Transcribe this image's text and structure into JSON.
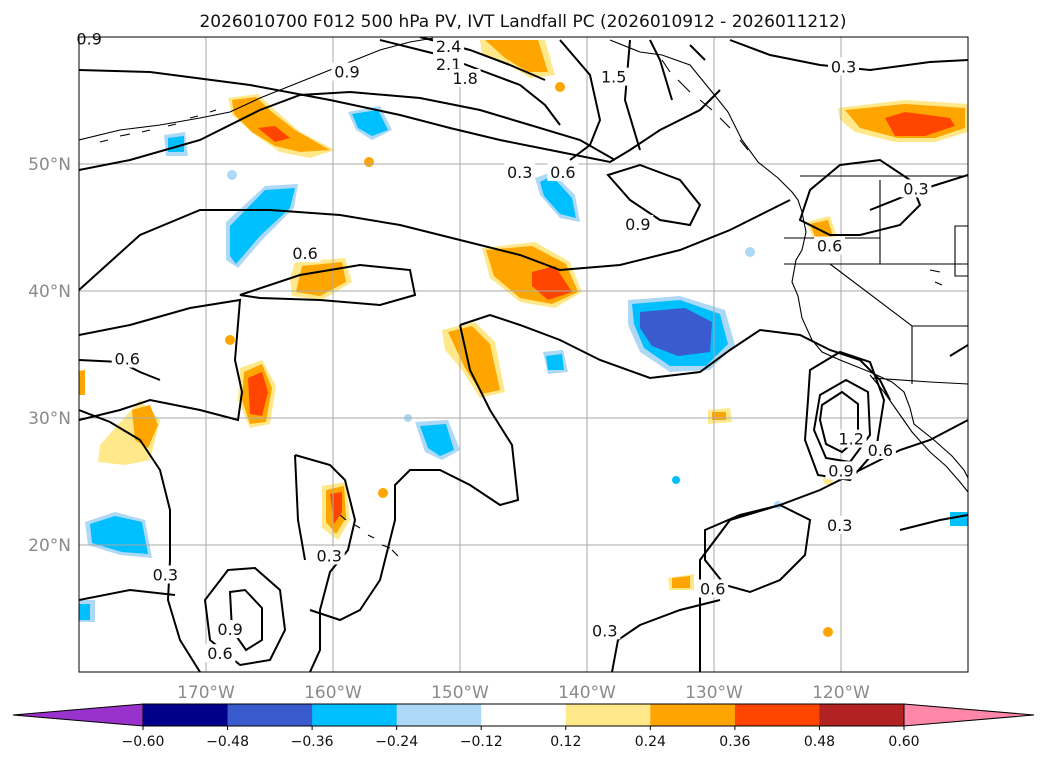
{
  "chart_data": {
    "type": "map-contour",
    "title": "2026010700 F012 500 hPa PV, IVT Landfall PC (2026010912 - 2026011212)",
    "lon_range": [
      -180,
      -110
    ],
    "lat_range": [
      10,
      60
    ],
    "lon_ticks": [
      {
        "value": -170,
        "label": "170°W"
      },
      {
        "value": -160,
        "label": "160°W"
      },
      {
        "value": -150,
        "label": "150°W"
      },
      {
        "value": -140,
        "label": "140°W"
      },
      {
        "value": -130,
        "label": "130°W"
      },
      {
        "value": -120,
        "label": "120°W"
      }
    ],
    "lat_ticks": [
      {
        "value": 20,
        "label": "20°N"
      },
      {
        "value": 30,
        "label": "30°N"
      },
      {
        "value": 40,
        "label": "40°N"
      },
      {
        "value": 50,
        "label": "50°N"
      }
    ],
    "grid": true,
    "colorbar": {
      "orientation": "horizontal",
      "extend": "both",
      "boundaries": [
        -0.6,
        -0.48,
        -0.36,
        -0.24,
        -0.12,
        0.12,
        0.24,
        0.36,
        0.48,
        0.6
      ],
      "tick_labels": [
        "−0.60",
        "−0.48",
        "−0.36",
        "−0.24",
        "−0.12",
        "0.12",
        "0.24",
        "0.36",
        "0.48",
        "0.60"
      ],
      "colors": [
        "#9932cc",
        "#00008b",
        "#3a5bcd",
        "#00bfff",
        "#add8f6",
        "#ffffff",
        "#ffe88a",
        "#ffa500",
        "#ff4500",
        "#b22222",
        "#ff88a8"
      ]
    },
    "contour_labels": [
      {
        "lon": -179.2,
        "lat": 59.8,
        "text": "0.9"
      },
      {
        "lon": -150.9,
        "lat": 59.2,
        "text": "2.4"
      },
      {
        "lon": -150.9,
        "lat": 57.8,
        "text": "2.1"
      },
      {
        "lon": -149.6,
        "lat": 56.7,
        "text": "1.8"
      },
      {
        "lon": -158.9,
        "lat": 57.2,
        "text": "0.9"
      },
      {
        "lon": -137.9,
        "lat": 56.8,
        "text": "1.5"
      },
      {
        "lon": -119.8,
        "lat": 57.6,
        "text": "0.3"
      },
      {
        "lon": -145.3,
        "lat": 49.3,
        "text": "0.3"
      },
      {
        "lon": -141.9,
        "lat": 49.3,
        "text": "0.6"
      },
      {
        "lon": -136.0,
        "lat": 45.2,
        "text": "0.9"
      },
      {
        "lon": -120.9,
        "lat": 43.5,
        "text": "0.6"
      },
      {
        "lon": -114.1,
        "lat": 48.0,
        "text": "0.3"
      },
      {
        "lon": -162.2,
        "lat": 42.9,
        "text": "0.6"
      },
      {
        "lon": -176.2,
        "lat": 34.6,
        "text": "0.6"
      },
      {
        "lon": -119.2,
        "lat": 28.3,
        "text": "1.2"
      },
      {
        "lon": -116.9,
        "lat": 27.4,
        "text": "0.6"
      },
      {
        "lon": -120.0,
        "lat": 25.8,
        "text": "0.9"
      },
      {
        "lon": -120.1,
        "lat": 21.5,
        "text": "0.3"
      },
      {
        "lon": -173.2,
        "lat": 17.6,
        "text": "0.3"
      },
      {
        "lon": -160.3,
        "lat": 19.1,
        "text": "0.3"
      },
      {
        "lon": -130.1,
        "lat": 16.5,
        "text": "0.6"
      },
      {
        "lon": -168.1,
        "lat": 13.3,
        "text": "0.9"
      },
      {
        "lon": -138.6,
        "lat": 13.2,
        "text": "0.3"
      },
      {
        "lon": -168.9,
        "lat": 11.4,
        "text": "0.6"
      }
    ],
    "shaded_anomalies": [
      {
        "lon": -164.2,
        "lat": 55.5,
        "value": 0.38
      },
      {
        "lon": -141.9,
        "lat": 59.0,
        "value": 0.3
      },
      {
        "lon": -119.0,
        "lat": 52.9,
        "value": 0.4
      },
      {
        "lon": -160.5,
        "lat": 41.5,
        "value": 0.3
      },
      {
        "lon": -143.1,
        "lat": 41.0,
        "value": 0.4
      },
      {
        "lon": -148.9,
        "lat": 34.8,
        "value": 0.3
      },
      {
        "lon": -165.8,
        "lat": 32.0,
        "value": 0.4
      },
      {
        "lon": -175.2,
        "lat": 29.0,
        "value": 0.3
      },
      {
        "lon": -158.2,
        "lat": 23.0,
        "value": 0.42
      },
      {
        "lon": -121.7,
        "lat": 44.5,
        "value": 0.3
      },
      {
        "lon": -164.2,
        "lat": 45.5,
        "value": -0.32
      },
      {
        "lon": -155.9,
        "lat": 53.6,
        "value": -0.28
      },
      {
        "lon": -141.5,
        "lat": 47.3,
        "value": -0.3
      },
      {
        "lon": -134.1,
        "lat": 36.8,
        "value": -0.5
      },
      {
        "lon": -151.7,
        "lat": 28.0,
        "value": -0.28
      },
      {
        "lon": -176.9,
        "lat": 20.8,
        "value": -0.3
      },
      {
        "lon": -143.0,
        "lat": 34.5,
        "value": -0.25
      }
    ]
  }
}
